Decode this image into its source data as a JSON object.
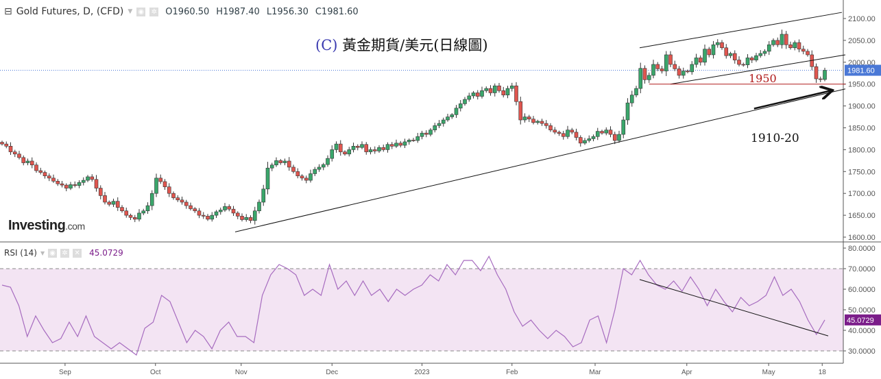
{
  "header": {
    "symbol": "Gold Futures, D, (CFD)",
    "dropdown_icon": "chevron-down-icon",
    "open": "O1960.50",
    "high": "H1987.40",
    "low": "L1956.30",
    "close": "C1981.60"
  },
  "title": {
    "prefix": "(C)",
    "text": "黃金期貨/美元(日線圖)"
  },
  "logo": {
    "main": "Investing",
    "suffix": ".com"
  },
  "rsi_legend": {
    "label": "RSI (14)",
    "value": "45.0729"
  },
  "annotations_text": {
    "level_1950": "1950",
    "target": "1910-20"
  },
  "colors": {
    "up": "#3aa66b",
    "down": "#e0564f",
    "rsi": "#a66bbf",
    "rsi_band": "#f3e4f3",
    "last_price": "#4a78d6",
    "rsi_badge": "#7b1d8a",
    "level": "#b01a1a"
  },
  "chart_data": [
    {
      "type": "candlestick",
      "title": "Gold Futures, D, (CFD)",
      "price_axis": {
        "min": 1600,
        "max": 2100,
        "ticks": [
          "2100.00",
          "2050.00",
          "2000.00",
          "1950.00",
          "1900.00",
          "1850.00",
          "1800.00",
          "1750.00",
          "1700.00",
          "1650.00",
          "1600.00"
        ]
      },
      "last_price": "1981.60",
      "x_ticks": [
        {
          "label": "Sep",
          "index": 14.7
        },
        {
          "label": "Oct",
          "index": 35.8
        },
        {
          "label": "Nov",
          "index": 55.8
        },
        {
          "label": "Dec",
          "index": 77
        },
        {
          "label": "2023",
          "index": 98
        },
        {
          "label": "Feb",
          "index": 119
        },
        {
          "label": "Mar",
          "index": 138.4
        },
        {
          "label": "Apr",
          "index": 159.8
        },
        {
          "label": "May",
          "index": 178.9
        },
        {
          "label": "18",
          "index": 191.4
        }
      ],
      "closes": [
        1813,
        1808,
        1795,
        1790,
        1782,
        1770,
        1774,
        1765,
        1752,
        1748,
        1740,
        1735,
        1728,
        1722,
        1719,
        1712,
        1720,
        1718,
        1725,
        1730,
        1738,
        1732,
        1712,
        1695,
        1680,
        1675,
        1682,
        1668,
        1660,
        1650,
        1645,
        1641,
        1655,
        1660,
        1672,
        1700,
        1735,
        1727,
        1715,
        1700,
        1690,
        1685,
        1680,
        1672,
        1665,
        1660,
        1650,
        1648,
        1641,
        1650,
        1658,
        1662,
        1670,
        1664,
        1655,
        1648,
        1640,
        1645,
        1638,
        1660,
        1680,
        1710,
        1758,
        1765,
        1775,
        1770,
        1774,
        1760,
        1750,
        1740,
        1735,
        1730,
        1745,
        1755,
        1760,
        1766,
        1780,
        1800,
        1813,
        1795,
        1790,
        1800,
        1808,
        1805,
        1812,
        1795,
        1800,
        1797,
        1805,
        1800,
        1812,
        1808,
        1815,
        1810,
        1818,
        1822,
        1821,
        1830,
        1838,
        1835,
        1845,
        1855,
        1860,
        1868,
        1875,
        1880,
        1895,
        1905,
        1915,
        1923,
        1930,
        1922,
        1935,
        1940,
        1930,
        1946,
        1935,
        1925,
        1940,
        1946,
        1910,
        1868,
        1875,
        1870,
        1862,
        1865,
        1860,
        1855,
        1845,
        1840,
        1837,
        1830,
        1845,
        1840,
        1828,
        1815,
        1821,
        1825,
        1830,
        1842,
        1838,
        1845,
        1835,
        1821,
        1835,
        1868,
        1907,
        1925,
        1940,
        1986,
        1960,
        1970,
        1995,
        1985,
        1980,
        2017,
        1995,
        1985,
        1970,
        1980,
        1978,
        1995,
        2010,
        2000,
        2030,
        2017,
        2040,
        2045,
        2033,
        2015,
        2020,
        2005,
        1995,
        1994,
        2010,
        2005,
        2015,
        2020,
        2025,
        2040,
        2050,
        2040,
        2064,
        2040,
        2033,
        2045,
        2030,
        2025,
        2017,
        1990,
        1962,
        1960.5,
        1981.6
      ],
      "last_candle": {
        "open": 1960.5,
        "high": 1987.4,
        "low": 1956.3,
        "close": 1981.6
      },
      "lines": [
        {
          "name": "channel-upper",
          "from": [
            148.8,
            2033
          ],
          "to": [
            196,
            2114
          ]
        },
        {
          "name": "channel-lower",
          "from": [
            156,
            1950
          ],
          "to": [
            196.8,
            2017
          ]
        },
        {
          "name": "long-term-support",
          "from": [
            54.4,
            1612
          ],
          "to": [
            196.8,
            1939
          ]
        },
        {
          "name": "level-1950",
          "from": [
            151,
            1950
          ],
          "to": [
            196.8,
            1950
          ],
          "color": "level"
        },
        {
          "name": "target-arrow",
          "from": [
            175.5,
            1894
          ],
          "to": [
            193.4,
            1935
          ],
          "arrow": true
        }
      ]
    },
    {
      "type": "line",
      "title": "RSI (14)",
      "y_axis": {
        "min": 25,
        "max": 80,
        "ticks": [
          "80.0000",
          "70.0000",
          "60.0000",
          "50.0000",
          "40.0000",
          "30.0000"
        ]
      },
      "bands": [
        30,
        70
      ],
      "last_value": "45.0729",
      "values": [
        62,
        61,
        52,
        37,
        47,
        40,
        34,
        36,
        44,
        37,
        47,
        37,
        34,
        31,
        34,
        31,
        28,
        41,
        44,
        57,
        54,
        44,
        34,
        40,
        37,
        31,
        40,
        44,
        37,
        37,
        34,
        57,
        67,
        72,
        70,
        67,
        57,
        60,
        57,
        72,
        60,
        64,
        57,
        64,
        57,
        60,
        54,
        60,
        57,
        60,
        62,
        67,
        64,
        72,
        67,
        74,
        74,
        69,
        76,
        67,
        60,
        49,
        42,
        45,
        40,
        36,
        40,
        37,
        32,
        34,
        45,
        47,
        34,
        50,
        70,
        67,
        74,
        67,
        62,
        60,
        64,
        59,
        66,
        60,
        52,
        60,
        54,
        49,
        56,
        52,
        54,
        57,
        66,
        57,
        60,
        54,
        45,
        38,
        45.07
      ],
      "lines": [
        {
          "name": "rsi-downtrend",
          "from": [
            148.8,
            64.7
          ],
          "to": [
            192.8,
            37.3
          ]
        }
      ]
    }
  ]
}
